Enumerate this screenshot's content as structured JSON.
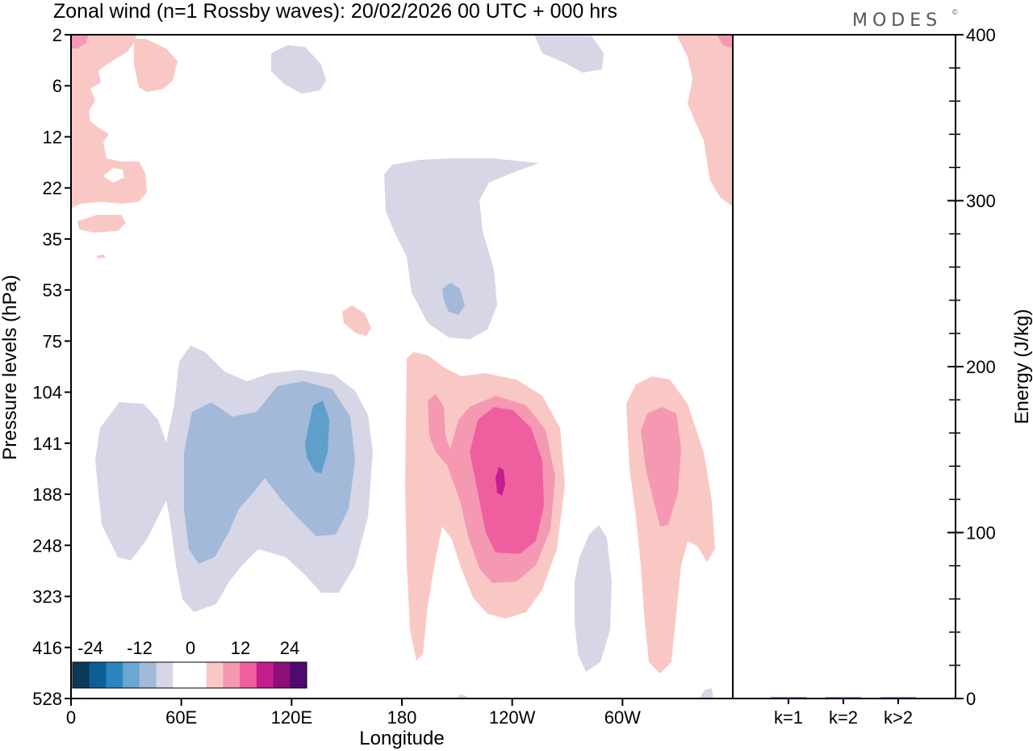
{
  "logo": "MODES",
  "colors": {
    "neg1": "#d6d6e6",
    "neg2": "#a3b9d9",
    "neg3": "#5f9fca",
    "pos1": "#f9c8c5",
    "pos2": "#f598b2",
    "pos3": "#ef5fa0",
    "pos4": "#c51d8e",
    "bar": "#101a5c"
  },
  "chart_data": [
    {
      "type": "heatmap",
      "title": "Zonal wind (n=1 Rossby waves):  20/02/2026  00 UTC  + 000 hrs",
      "xlabel": "Longitude",
      "ylabel": "Pressure levels (hPa)",
      "x_ticks": [
        "0",
        "60E",
        "120E",
        "180",
        "120W",
        "60W"
      ],
      "y_ticks": [
        "2",
        "6",
        "12",
        "22",
        "35",
        "53",
        "75",
        "104",
        "141",
        "188",
        "248",
        "323",
        "416",
        "528"
      ],
      "colorbar": {
        "labels": [
          "-24",
          "-12",
          "0",
          "12",
          "24"
        ],
        "colors": [
          "#0b3a5c",
          "#0d5f96",
          "#2b86c0",
          "#6aa8d2",
          "#a3b9d9",
          "#d6d6e6",
          "#ffffff",
          "#ffffff",
          "#f9c8c5",
          "#f598b2",
          "#ef5fa0",
          "#c51d8e",
          "#8d0f7a",
          "#4e0a6e"
        ]
      }
    },
    {
      "type": "bar",
      "categories": [
        "k=1",
        "k=2",
        "k>2"
      ],
      "values": [
        0.7,
        0.3,
        0.4
      ],
      "ylabel": "Energy (J/kg)",
      "ylim": [
        0,
        400
      ],
      "y_ticks": [
        "0",
        "100",
        "200",
        "300",
        "400"
      ]
    }
  ]
}
